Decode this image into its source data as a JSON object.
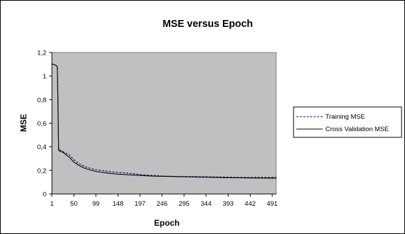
{
  "chart_data": {
    "type": "line",
    "title": "MSE versus Epoch",
    "xlabel": "Epoch",
    "ylabel": "MSE",
    "ylim": [
      0,
      1.2
    ],
    "xlim": [
      1,
      500
    ],
    "x_ticks": [
      "1",
      "50",
      "99",
      "148",
      "197",
      "246",
      "295",
      "344",
      "393",
      "442",
      "491"
    ],
    "y_ticks": [
      "0",
      "0,2",
      "0,4",
      "0,6",
      "0,8",
      "1",
      "1,2"
    ],
    "grid": false,
    "legend_position": "right",
    "plot_background": "#c0c0c0",
    "series": [
      {
        "name": "Training MSE",
        "color": "#000080",
        "style": "dashed",
        "x": [
          1,
          5,
          10,
          13,
          14,
          15,
          16,
          20,
          25,
          30,
          40,
          50,
          60,
          70,
          80,
          99,
          120,
          148,
          175,
          197,
          220,
          246,
          270,
          295,
          320,
          344,
          370,
          393,
          420,
          442,
          470,
          491,
          500
        ],
        "y": [
          1.1,
          1.1,
          1.09,
          1.08,
          0.9,
          0.6,
          0.38,
          0.37,
          0.36,
          0.35,
          0.33,
          0.29,
          0.26,
          0.24,
          0.225,
          0.205,
          0.195,
          0.183,
          0.175,
          0.165,
          0.158,
          0.152,
          0.15,
          0.148,
          0.147,
          0.145,
          0.144,
          0.142,
          0.14,
          0.14,
          0.14,
          0.14,
          0.14
        ]
      },
      {
        "name": "Cross Validation MSE",
        "color": "#000000",
        "style": "solid",
        "x": [
          1,
          5,
          10,
          13,
          14,
          15,
          16,
          20,
          25,
          30,
          40,
          50,
          60,
          70,
          80,
          99,
          120,
          148,
          175,
          197,
          220,
          246,
          270,
          295,
          320,
          344,
          370,
          393,
          420,
          442,
          470,
          491,
          500
        ],
        "y": [
          1.1,
          1.1,
          1.09,
          1.08,
          0.9,
          0.6,
          0.37,
          0.36,
          0.355,
          0.34,
          0.31,
          0.27,
          0.245,
          0.225,
          0.21,
          0.19,
          0.18,
          0.168,
          0.162,
          0.157,
          0.153,
          0.15,
          0.148,
          0.146,
          0.144,
          0.142,
          0.14,
          0.138,
          0.137,
          0.136,
          0.135,
          0.134,
          0.134
        ]
      }
    ]
  }
}
